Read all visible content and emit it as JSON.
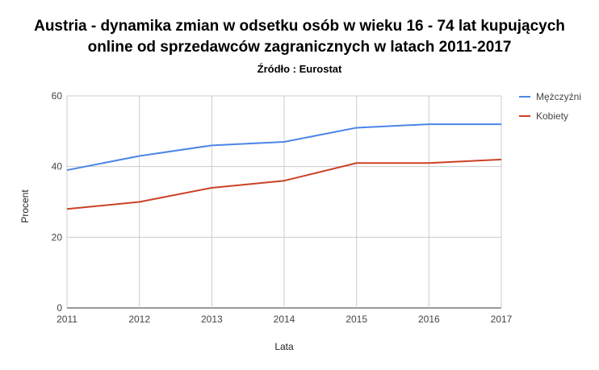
{
  "chart_data": {
    "type": "line",
    "title_line1": "Austria - dynamika zmian w odsetku osób w wieku 16 - 74 lat kupujących",
    "title_line2": "online od sprzedawców zagranicznych w latach  2011-2017",
    "subtitle": "Źródło : Eurostat",
    "xlabel": "Lata",
    "ylabel": "Procent",
    "x": [
      "2011",
      "2012",
      "2013",
      "2014",
      "2015",
      "2016",
      "2017"
    ],
    "ylim": [
      0,
      60
    ],
    "yticks": [
      "0",
      "20",
      "40",
      "60"
    ],
    "grid": true,
    "legend_position": "right",
    "series": [
      {
        "name": "Mężczyźni",
        "color": "#4a86e8",
        "values": [
          39,
          43,
          46,
          47,
          51,
          52,
          52
        ]
      },
      {
        "name": "Kobiety",
        "color": "#cc4125",
        "values": [
          28,
          30,
          34,
          36,
          41,
          41,
          42
        ]
      }
    ]
  }
}
